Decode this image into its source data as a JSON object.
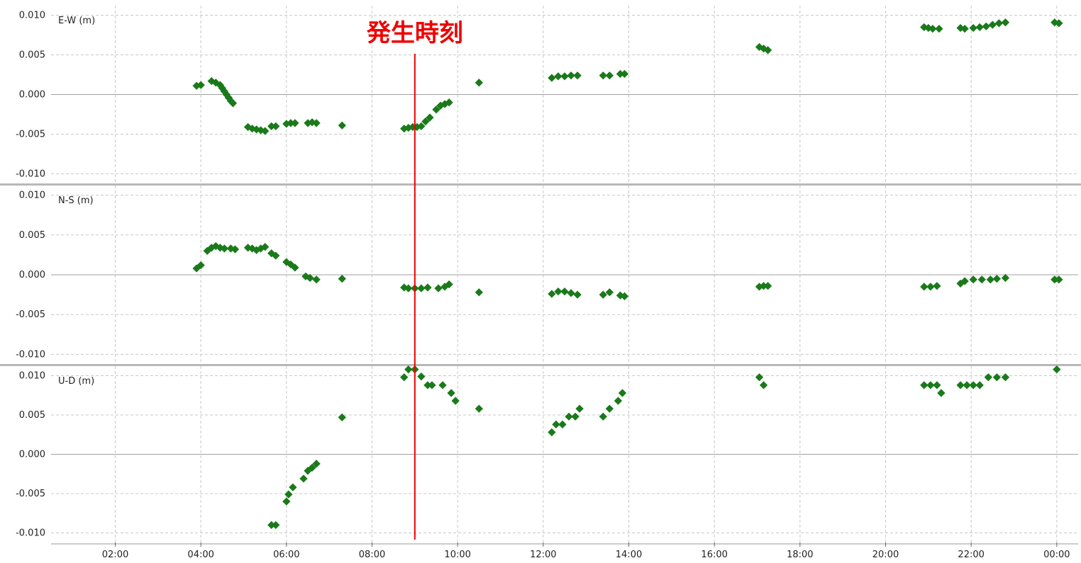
{
  "chart_data": {
    "type": "scatter",
    "event": {
      "label": "発生時刻",
      "x": 9.0
    },
    "x_ticks": [
      "02:00",
      "04:00",
      "06:00",
      "08:00",
      "10:00",
      "12:00",
      "14:00",
      "16:00",
      "18:00",
      "20:00",
      "22:00",
      "00:00"
    ],
    "x_tick_values": [
      2,
      4,
      6,
      8,
      10,
      12,
      14,
      16,
      18,
      20,
      22,
      24
    ],
    "xlim": [
      0.5,
      24.5
    ],
    "y_ticks": [
      "0.010",
      "0.005",
      "0.000",
      "-0.005",
      "-0.010"
    ],
    "y_tick_values": [
      0.01,
      0.005,
      0,
      -0.005,
      -0.01
    ],
    "ylim": [
      -0.0105,
      0.0105
    ],
    "grid": true,
    "marker_color": "#1a7a1a",
    "event_color": "#ee0000",
    "panels": [
      {
        "label": "E-W (m)",
        "points": [
          [
            3.9,
            0.0011
          ],
          [
            4.0,
            0.0012
          ],
          [
            4.25,
            0.0017
          ],
          [
            4.35,
            0.0015
          ],
          [
            4.45,
            0.0012
          ],
          [
            4.5,
            0.0008
          ],
          [
            4.55,
            0.0004
          ],
          [
            4.6,
            0.0
          ],
          [
            4.65,
            -0.0004
          ],
          [
            4.7,
            -0.0008
          ],
          [
            4.75,
            -0.0011
          ],
          [
            5.1,
            -0.0041
          ],
          [
            5.2,
            -0.0043
          ],
          [
            5.3,
            -0.0044
          ],
          [
            5.4,
            -0.0045
          ],
          [
            5.5,
            -0.0046
          ],
          [
            5.65,
            -0.004
          ],
          [
            5.75,
            -0.004
          ],
          [
            6.0,
            -0.0037
          ],
          [
            6.1,
            -0.0036
          ],
          [
            6.2,
            -0.0036
          ],
          [
            6.5,
            -0.0036
          ],
          [
            6.6,
            -0.0035
          ],
          [
            6.7,
            -0.0036
          ],
          [
            7.3,
            -0.0039
          ],
          [
            8.75,
            -0.0043
          ],
          [
            8.85,
            -0.0042
          ],
          [
            8.95,
            -0.0041
          ],
          [
            9.05,
            -0.0041
          ],
          [
            9.15,
            -0.004
          ],
          [
            9.25,
            -0.0034
          ],
          [
            9.35,
            -0.0029
          ],
          [
            9.5,
            -0.0019
          ],
          [
            9.6,
            -0.0014
          ],
          [
            9.7,
            -0.0012
          ],
          [
            9.8,
            -0.001
          ],
          [
            10.5,
            0.0015
          ],
          [
            12.2,
            0.0021
          ],
          [
            12.35,
            0.0023
          ],
          [
            12.5,
            0.0023
          ],
          [
            12.65,
            0.0024
          ],
          [
            12.8,
            0.0024
          ],
          [
            13.4,
            0.0024
          ],
          [
            13.55,
            0.0024
          ],
          [
            13.8,
            0.0026
          ],
          [
            13.9,
            0.0026
          ],
          [
            17.05,
            0.006
          ],
          [
            17.15,
            0.0058
          ],
          [
            17.25,
            0.0056
          ],
          [
            20.9,
            0.0085
          ],
          [
            21.0,
            0.0084
          ],
          [
            21.1,
            0.0083
          ],
          [
            21.25,
            0.0083
          ],
          [
            21.75,
            0.0084
          ],
          [
            21.85,
            0.0083
          ],
          [
            22.05,
            0.0084
          ],
          [
            22.2,
            0.0085
          ],
          [
            22.35,
            0.0086
          ],
          [
            22.5,
            0.0088
          ],
          [
            22.65,
            0.009
          ],
          [
            22.8,
            0.0091
          ],
          [
            23.95,
            0.0091
          ],
          [
            24.05,
            0.009
          ]
        ]
      },
      {
        "label": "N-S (m)",
        "points": [
          [
            3.9,
            0.0008
          ],
          [
            4.0,
            0.0012
          ],
          [
            4.15,
            0.003
          ],
          [
            4.25,
            0.0034
          ],
          [
            4.35,
            0.0036
          ],
          [
            4.45,
            0.0034
          ],
          [
            4.55,
            0.0033
          ],
          [
            4.7,
            0.0033
          ],
          [
            4.8,
            0.0032
          ],
          [
            5.1,
            0.0034
          ],
          [
            5.2,
            0.0033
          ],
          [
            5.3,
            0.0031
          ],
          [
            5.4,
            0.0033
          ],
          [
            5.5,
            0.0035
          ],
          [
            5.65,
            0.0027
          ],
          [
            5.75,
            0.0024
          ],
          [
            6.0,
            0.0016
          ],
          [
            6.1,
            0.0013
          ],
          [
            6.2,
            0.0009
          ],
          [
            6.45,
            -0.0002
          ],
          [
            6.55,
            -0.0004
          ],
          [
            6.7,
            -0.0006
          ],
          [
            7.3,
            -0.0005
          ],
          [
            8.75,
            -0.0016
          ],
          [
            8.85,
            -0.0017
          ],
          [
            9.0,
            -0.0017
          ],
          [
            9.15,
            -0.0017
          ],
          [
            9.3,
            -0.0016
          ],
          [
            9.55,
            -0.0017
          ],
          [
            9.7,
            -0.0015
          ],
          [
            9.8,
            -0.0012
          ],
          [
            10.5,
            -0.0022
          ],
          [
            12.2,
            -0.0024
          ],
          [
            12.35,
            -0.0021
          ],
          [
            12.5,
            -0.0021
          ],
          [
            12.65,
            -0.0023
          ],
          [
            12.8,
            -0.0025
          ],
          [
            13.4,
            -0.0025
          ],
          [
            13.55,
            -0.0022
          ],
          [
            13.8,
            -0.0026
          ],
          [
            13.9,
            -0.0027
          ],
          [
            17.05,
            -0.0015
          ],
          [
            17.15,
            -0.0014
          ],
          [
            17.25,
            -0.0014
          ],
          [
            20.9,
            -0.0015
          ],
          [
            21.05,
            -0.0015
          ],
          [
            21.2,
            -0.0014
          ],
          [
            21.75,
            -0.0011
          ],
          [
            21.85,
            -0.0008
          ],
          [
            22.05,
            -0.0006
          ],
          [
            22.25,
            -0.0006
          ],
          [
            22.45,
            -0.0006
          ],
          [
            22.6,
            -0.0005
          ],
          [
            22.8,
            -0.0004
          ],
          [
            23.95,
            -0.0006
          ],
          [
            24.05,
            -0.0006
          ]
        ]
      },
      {
        "label": "U-D (m)",
        "points": [
          [
            5.65,
            -0.009
          ],
          [
            5.75,
            -0.009
          ],
          [
            6.0,
            -0.006
          ],
          [
            6.05,
            -0.0051
          ],
          [
            6.15,
            -0.0042
          ],
          [
            6.4,
            -0.0031
          ],
          [
            6.5,
            -0.0021
          ],
          [
            6.6,
            -0.0017
          ],
          [
            6.7,
            -0.0012
          ],
          [
            7.3,
            0.0047
          ],
          [
            8.75,
            0.0098
          ],
          [
            8.85,
            0.0108
          ],
          [
            9.0,
            0.0108
          ],
          [
            9.15,
            0.0099
          ],
          [
            9.3,
            0.0088
          ],
          [
            9.4,
            0.0088
          ],
          [
            9.65,
            0.0088
          ],
          [
            9.85,
            0.0078
          ],
          [
            9.95,
            0.0068
          ],
          [
            10.5,
            0.0058
          ],
          [
            12.2,
            0.0028
          ],
          [
            12.3,
            0.0038
          ],
          [
            12.45,
            0.0038
          ],
          [
            12.6,
            0.0048
          ],
          [
            12.75,
            0.0048
          ],
          [
            12.85,
            0.0058
          ],
          [
            13.4,
            0.0048
          ],
          [
            13.55,
            0.0058
          ],
          [
            13.75,
            0.0068
          ],
          [
            13.85,
            0.0078
          ],
          [
            17.05,
            0.0098
          ],
          [
            17.15,
            0.0088
          ],
          [
            20.9,
            0.0088
          ],
          [
            21.05,
            0.0088
          ],
          [
            21.2,
            0.0088
          ],
          [
            21.3,
            0.0078
          ],
          [
            21.75,
            0.0088
          ],
          [
            21.9,
            0.0088
          ],
          [
            22.05,
            0.0088
          ],
          [
            22.2,
            0.0088
          ],
          [
            22.4,
            0.0098
          ],
          [
            22.6,
            0.0098
          ],
          [
            22.8,
            0.0098
          ],
          [
            24.0,
            0.0108
          ]
        ]
      }
    ]
  }
}
